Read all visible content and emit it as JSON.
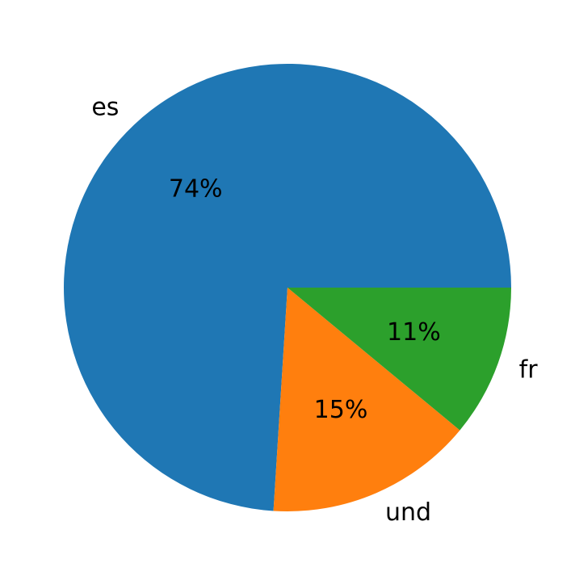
{
  "chart_data": {
    "type": "pie",
    "categories": [
      "es",
      "und",
      "fr"
    ],
    "values": [
      74,
      15,
      11
    ],
    "value_labels": [
      "74%",
      "15%",
      "11%"
    ],
    "colors": [
      "#1f77b4",
      "#ff7f0e",
      "#2ca02c"
    ]
  }
}
